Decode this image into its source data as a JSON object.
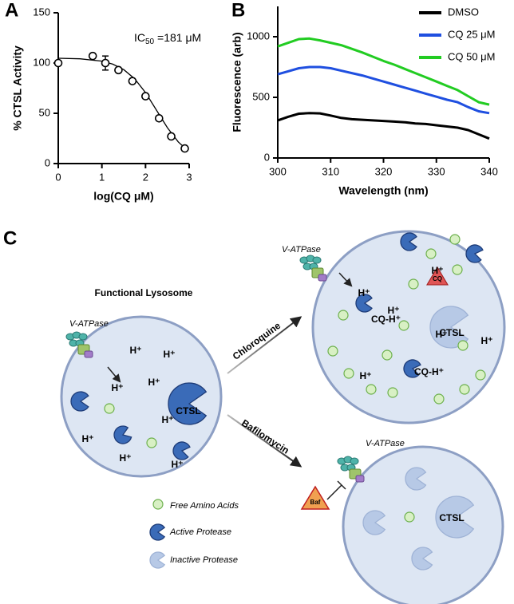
{
  "chart_data": [
    {
      "type": "scatter",
      "panel": "A",
      "ylabel": "% CTSL Activity",
      "xlabel": "log(CQ μM)",
      "annotation": {
        "text": "IC",
        "subscript": "50",
        "rest": " =181 μM"
      },
      "xlim": [
        0,
        3
      ],
      "ylim": [
        0,
        150
      ],
      "xticks": [
        0,
        1,
        2,
        3
      ],
      "yticks": [
        0,
        50,
        100,
        150
      ],
      "color": "#000000",
      "points": {
        "x": [
          0,
          0.79,
          1.08,
          1.38,
          1.7,
          2.0,
          2.31,
          2.59,
          2.9
        ],
        "y": [
          100,
          107,
          100,
          93,
          82,
          67,
          45,
          27,
          15
        ],
        "errors": [
          null,
          null,
          7,
          null,
          null,
          null,
          null,
          null,
          null
        ]
      },
      "fit": {
        "x": [
          0,
          0.5,
          1,
          1.25,
          1.5,
          1.75,
          2,
          2.25,
          2.5,
          2.75,
          2.95
        ],
        "y": [
          104.8,
          104.2,
          101.9,
          98.9,
          93.5,
          84.4,
          70.6,
          53.2,
          35.7,
          21.6,
          13.6
        ]
      }
    },
    {
      "type": "line",
      "panel": "B",
      "ylabel": "Fluorescence (arb)",
      "xlabel": "Wavelength (nm)",
      "xlim": [
        300,
        340
      ],
      "ylim": [
        0,
        1250
      ],
      "xticks": [
        300,
        310,
        320,
        330,
        340
      ],
      "yticks": [
        0,
        500,
        1000
      ],
      "legend": "upper right",
      "x": [
        300,
        302,
        304,
        306,
        308,
        310,
        312,
        314,
        316,
        318,
        320,
        322,
        324,
        326,
        328,
        330,
        332,
        334,
        336,
        338,
        340
      ],
      "series": [
        {
          "name": "DMSO",
          "color": "#000000",
          "values": [
            310,
            340,
            365,
            370,
            368,
            350,
            330,
            320,
            315,
            310,
            305,
            300,
            295,
            285,
            280,
            270,
            260,
            250,
            230,
            195,
            160
          ]
        },
        {
          "name": "CQ 25 μM",
          "color": "#1f4fe0",
          "values": [
            690,
            715,
            740,
            750,
            750,
            740,
            720,
            700,
            680,
            655,
            630,
            605,
            580,
            555,
            530,
            505,
            480,
            460,
            420,
            385,
            370
          ]
        },
        {
          "name": "CQ 50 μM",
          "color": "#22cc22",
          "values": [
            920,
            950,
            980,
            985,
            970,
            950,
            930,
            900,
            870,
            835,
            800,
            770,
            735,
            700,
            665,
            630,
            595,
            560,
            510,
            460,
            440
          ]
        }
      ]
    }
  ],
  "diagram": {
    "panel": "C",
    "functional": {
      "title": "Functional Lysosome",
      "pump": "V-ATPase",
      "ions": [
        "H⁺",
        "H⁺",
        "H⁺",
        "H⁺",
        "H⁺",
        "H⁺",
        "H⁺",
        "H⁺"
      ],
      "protease": "CTSL"
    },
    "chloroquine": {
      "arrow": "Chloroquine",
      "pump": "V-ATPase",
      "ions": [
        "H⁺",
        "H⁺",
        "H⁺",
        "H⁺",
        "H⁺",
        "H⁺"
      ],
      "complexes": [
        "CQ-H⁺",
        "CQ-H⁺"
      ],
      "drug": "CQ",
      "protease": "CTSL"
    },
    "bafilomycin": {
      "arrow": "Bafilomycin",
      "pump": "V-ATPase",
      "drug": "Baf",
      "protease": "CTSL"
    },
    "legend": [
      "Free Amino Acids",
      "Active Protease",
      "Inactive Protease"
    ]
  }
}
